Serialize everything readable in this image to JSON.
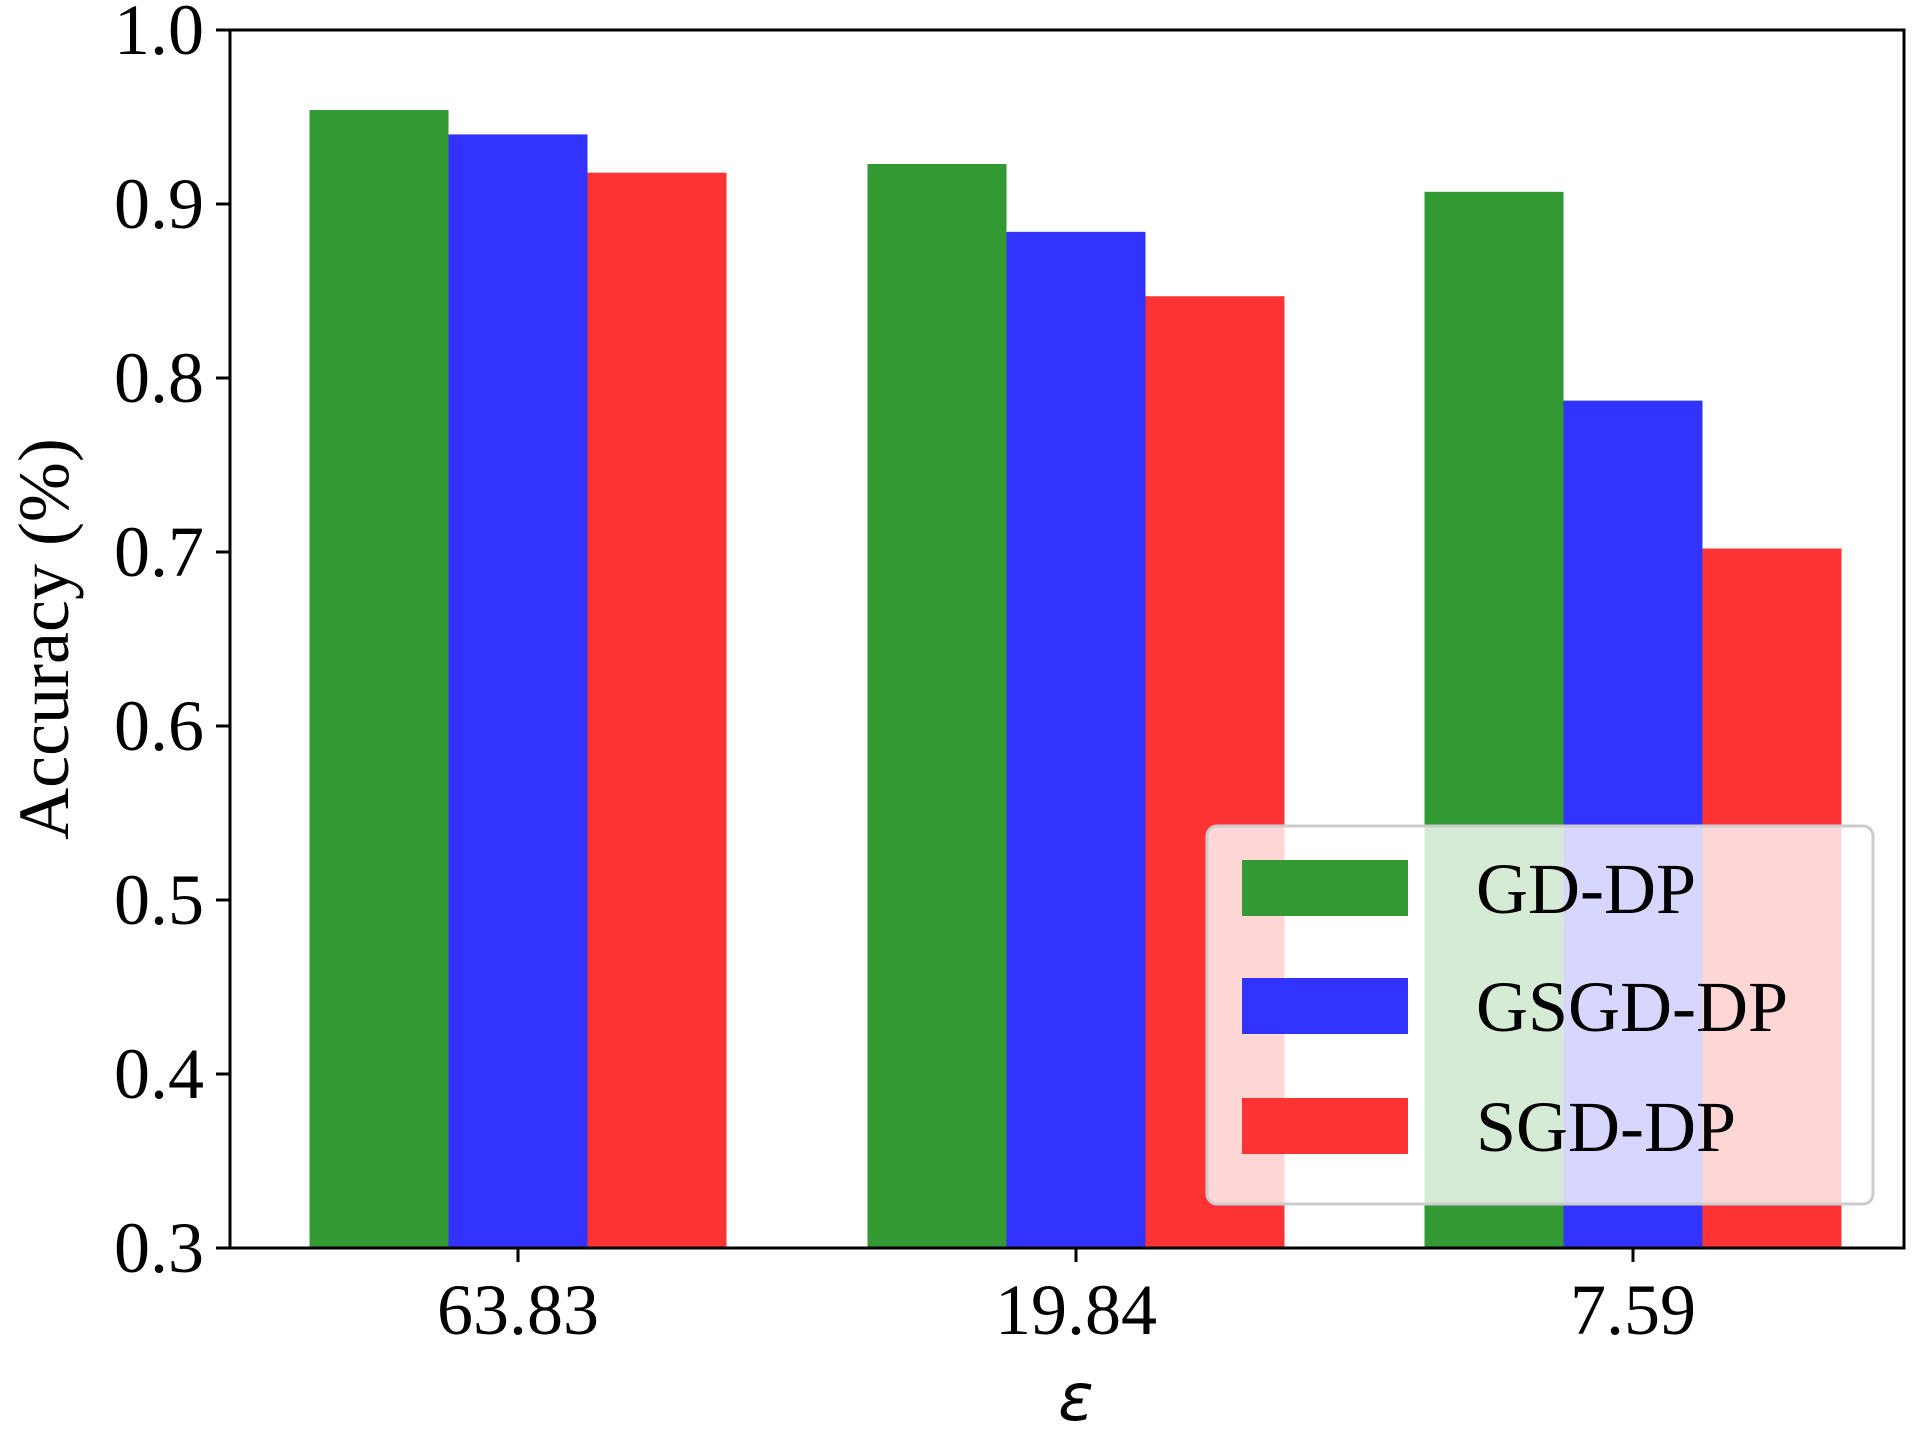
{
  "chart_data": {
    "type": "bar",
    "title": "",
    "xlabel": "ε",
    "ylabel": "Accuracy (%)",
    "ylim": [
      0.3,
      1.0
    ],
    "yticks": [
      "0.3",
      "0.4",
      "0.5",
      "0.6",
      "0.7",
      "0.8",
      "0.9",
      "1.0"
    ],
    "categories": [
      "63.83",
      "19.84",
      "7.59"
    ],
    "series": [
      {
        "name": "GD-DP",
        "color": "#339933",
        "values": [
          0.954,
          0.923,
          0.907
        ]
      },
      {
        "name": "GSGD-DP",
        "color": "#3333ff",
        "values": [
          0.94,
          0.884,
          0.787
        ]
      },
      {
        "name": "SGD-DP",
        "color": "#ff3333",
        "values": [
          0.918,
          0.847,
          0.702
        ]
      }
    ],
    "legend_position": "lower-right",
    "grid": false
  }
}
